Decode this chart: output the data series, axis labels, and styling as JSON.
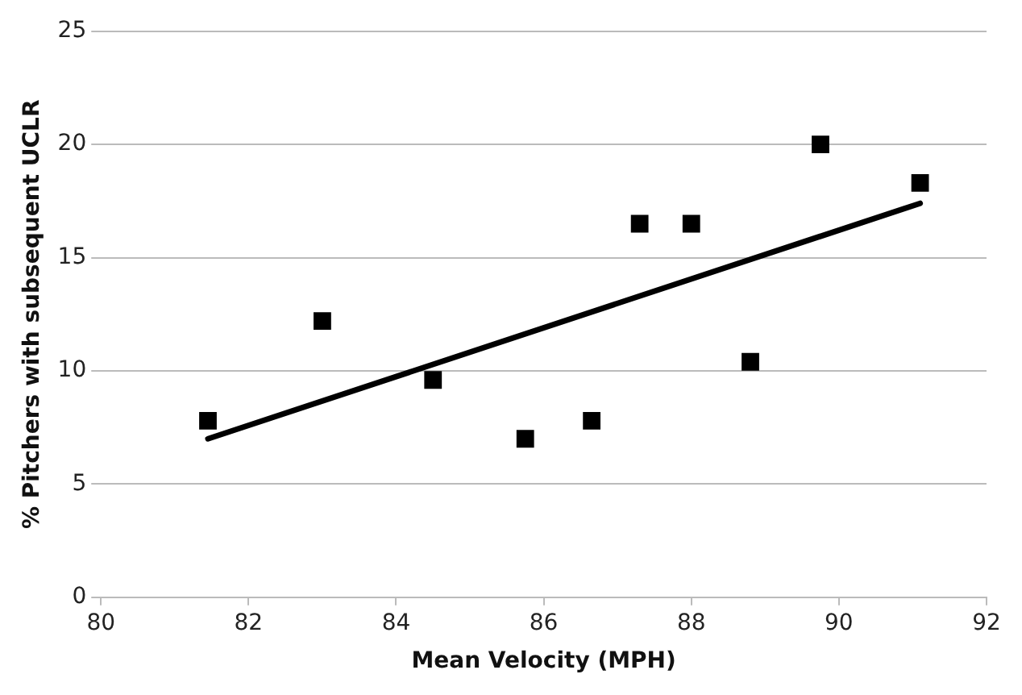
{
  "chart_data": {
    "type": "scatter",
    "xlabel": "Mean Velocity (MPH)",
    "ylabel": "% Pitchers with subsequent UCLR",
    "series": [
      {
        "type": "scatter",
        "color": "#000000",
        "marker": "square",
        "x": [
          81.45,
          83.0,
          84.5,
          85.75,
          86.65,
          87.3,
          88.0,
          88.8,
          89.75,
          91.1
        ],
        "values": [
          7.8,
          12.2,
          9.6,
          7.0,
          7.8,
          16.5,
          16.5,
          10.4,
          20.0,
          18.3
        ]
      },
      {
        "type": "line",
        "color": "#000000",
        "marker": "none",
        "x": [
          81.45,
          91.1
        ],
        "values": [
          7.0,
          17.4
        ]
      }
    ],
    "xlim": [
      80,
      92
    ],
    "xticks": [
      80,
      82,
      84,
      86,
      88,
      90,
      92
    ],
    "ylim": [
      0,
      25
    ],
    "yticks": [
      0,
      5,
      10,
      15,
      20,
      25
    ],
    "grid": "y",
    "legend": false
  }
}
